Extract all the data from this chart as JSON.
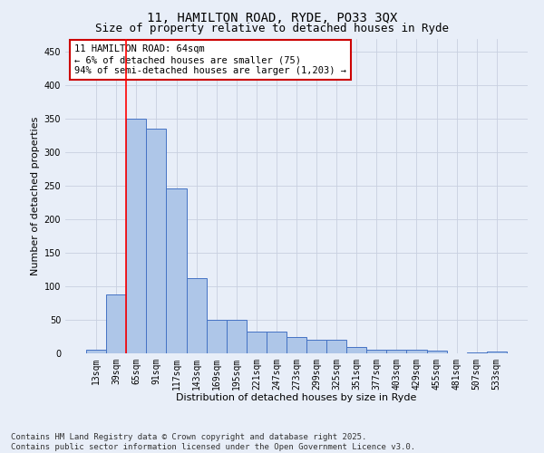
{
  "title1": "11, HAMILTON ROAD, RYDE, PO33 3QX",
  "title2": "Size of property relative to detached houses in Ryde",
  "xlabel": "Distribution of detached houses by size in Ryde",
  "ylabel": "Number of detached properties",
  "categories": [
    "13sqm",
    "39sqm",
    "65sqm",
    "91sqm",
    "117sqm",
    "143sqm",
    "169sqm",
    "195sqm",
    "221sqm",
    "247sqm",
    "273sqm",
    "299sqm",
    "325sqm",
    "351sqm",
    "377sqm",
    "403sqm",
    "429sqm",
    "455sqm",
    "481sqm",
    "507sqm",
    "533sqm"
  ],
  "values": [
    6,
    88,
    350,
    335,
    246,
    112,
    50,
    50,
    32,
    32,
    25,
    20,
    20,
    10,
    5,
    5,
    5,
    4,
    0,
    2,
    3
  ],
  "bar_color": "#aec6e8",
  "bar_edge_color": "#4472c4",
  "red_line_index": 2,
  "ylim": [
    0,
    470
  ],
  "yticks": [
    0,
    50,
    100,
    150,
    200,
    250,
    300,
    350,
    400,
    450
  ],
  "annotation_text": "11 HAMILTON ROAD: 64sqm\n← 6% of detached houses are smaller (75)\n94% of semi-detached houses are larger (1,203) →",
  "annotation_box_color": "#ffffff",
  "annotation_box_edge_color": "#cc0000",
  "footer_line1": "Contains HM Land Registry data © Crown copyright and database right 2025.",
  "footer_line2": "Contains public sector information licensed under the Open Government Licence v3.0.",
  "background_color": "#e8eef8",
  "grid_color": "#c8d0e0",
  "title_fontsize": 10,
  "subtitle_fontsize": 9,
  "axis_label_fontsize": 8,
  "tick_fontsize": 7,
  "footer_fontsize": 6.5,
  "annotation_fontsize": 7.5
}
